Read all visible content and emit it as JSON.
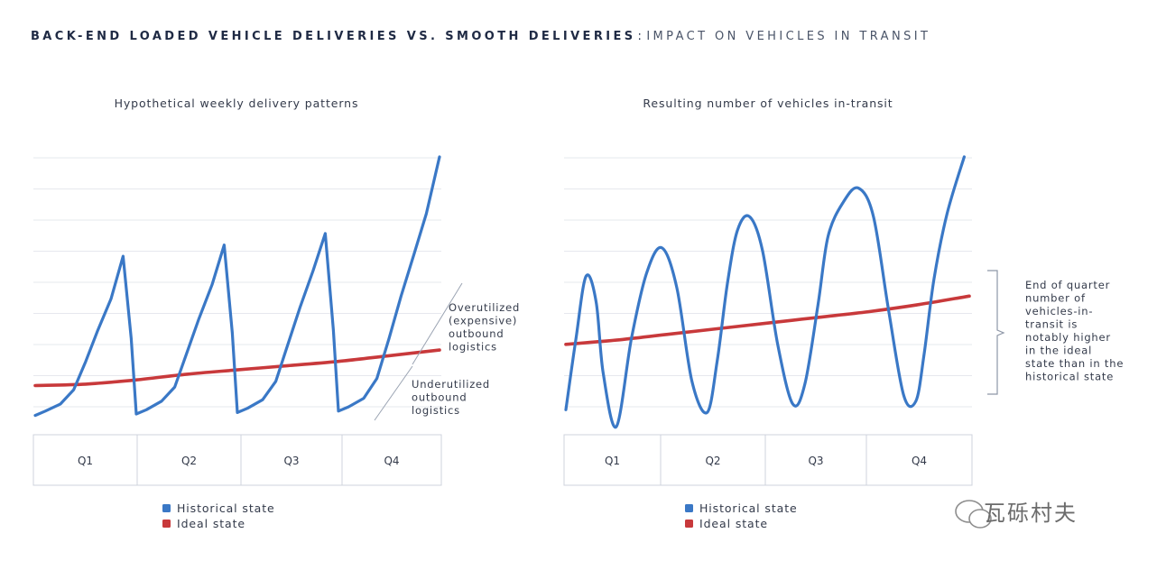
{
  "page_title": {
    "main": "BACK-END LOADED VEHICLE DELIVERIES VS. SMOOTH DELIVERIES",
    "separator": ":",
    "sub": "IMPACT ON VEHICLES IN TRANSIT"
  },
  "colors": {
    "historical": "#3a78c6",
    "ideal": "#c8393b",
    "grid": "#e6e8ee",
    "axis_box": "#cfd3dc",
    "text": "#333a4a"
  },
  "chart_data": [
    {
      "type": "line",
      "title": "Hypothetical weekly delivery patterns",
      "xlabel": "",
      "ylabel": "",
      "categories": [
        "Q1",
        "Q2",
        "Q3",
        "Q4"
      ],
      "xlim": [
        0,
        4
      ],
      "ylim": [
        0,
        10
      ],
      "grid": true,
      "series": [
        {
          "name": "Historical state",
          "color_key": "historical",
          "x": [
            0.0,
            0.1,
            0.25,
            0.38,
            0.5,
            0.62,
            0.75,
            0.87,
            0.95,
            1.0,
            1.1,
            1.25,
            1.38,
            1.5,
            1.62,
            1.75,
            1.87,
            1.95,
            2.0,
            2.1,
            2.25,
            2.38,
            2.5,
            2.62,
            2.75,
            2.87,
            2.95,
            3.0,
            3.1,
            3.25,
            3.38,
            3.5,
            3.62,
            3.75,
            3.87,
            4.0
          ],
          "values": [
            0.3,
            0.45,
            0.7,
            1.2,
            2.2,
            3.3,
            4.4,
            5.9,
            3.0,
            0.35,
            0.5,
            0.8,
            1.3,
            2.5,
            3.7,
            4.9,
            6.3,
            3.2,
            0.4,
            0.55,
            0.85,
            1.5,
            2.8,
            4.1,
            5.4,
            6.7,
            3.3,
            0.45,
            0.6,
            0.9,
            1.6,
            3.0,
            4.5,
            6.0,
            7.4,
            9.4
          ]
        },
        {
          "name": "Ideal state",
          "color_key": "ideal",
          "x": [
            0,
            0.5,
            1,
            1.5,
            2,
            2.5,
            3,
            3.5,
            4
          ],
          "values": [
            1.35,
            1.4,
            1.55,
            1.75,
            1.9,
            2.05,
            2.2,
            2.4,
            2.6
          ]
        }
      ],
      "annotations": [
        {
          "text_lines": [
            "Overutilized",
            "(expensive)",
            "outbound",
            "logistics"
          ]
        },
        {
          "text_lines": [
            "Underutilized",
            "outbound",
            "logistics"
          ]
        }
      ]
    },
    {
      "type": "line",
      "title": "Resulting number of vehicles in-transit",
      "xlabel": "",
      "ylabel": "",
      "categories": [
        "Q1",
        "Q2",
        "Q3",
        "Q4"
      ],
      "xlim": [
        0,
        4
      ],
      "ylim": [
        0,
        10
      ],
      "grid": true,
      "series": [
        {
          "name": "Historical state",
          "color_key": "historical",
          "x": [
            0.0,
            0.1,
            0.2,
            0.3,
            0.37,
            0.5,
            0.65,
            0.8,
            0.95,
            1.1,
            1.25,
            1.4,
            1.5,
            1.6,
            1.7,
            1.82,
            1.95,
            2.1,
            2.25,
            2.37,
            2.5,
            2.6,
            2.75,
            2.9,
            3.05,
            3.2,
            3.35,
            3.47,
            3.55,
            3.65,
            3.78,
            3.95
          ],
          "values": [
            0.5,
            3.0,
            5.2,
            4.3,
            1.8,
            -0.1,
            3.0,
            5.3,
            6.2,
            4.8,
            1.5,
            0.4,
            2.2,
            4.9,
            6.8,
            7.3,
            6.1,
            2.8,
            0.7,
            1.4,
            4.2,
            6.6,
            7.8,
            8.3,
            7.3,
            4.0,
            1.0,
            0.8,
            2.4,
            5.1,
            7.4,
            9.4
          ]
        },
        {
          "name": "Ideal state",
          "color_key": "ideal",
          "x": [
            0,
            0.5,
            1,
            1.5,
            2,
            2.5,
            3,
            3.5,
            4
          ],
          "values": [
            2.8,
            2.95,
            3.15,
            3.35,
            3.55,
            3.75,
            3.95,
            4.2,
            4.5
          ]
        }
      ],
      "annotations": [
        {
          "text_lines": [
            "End of quarter",
            "number of",
            "vehicles-in-",
            "transit is",
            "notably higher",
            "in the ideal",
            "state than in the",
            "historical state"
          ]
        }
      ]
    }
  ],
  "legend": [
    {
      "label": "Historical state",
      "color_key": "historical"
    },
    {
      "label": "Ideal state",
      "color_key": "ideal"
    }
  ],
  "watermark": "瓦砾村夫"
}
